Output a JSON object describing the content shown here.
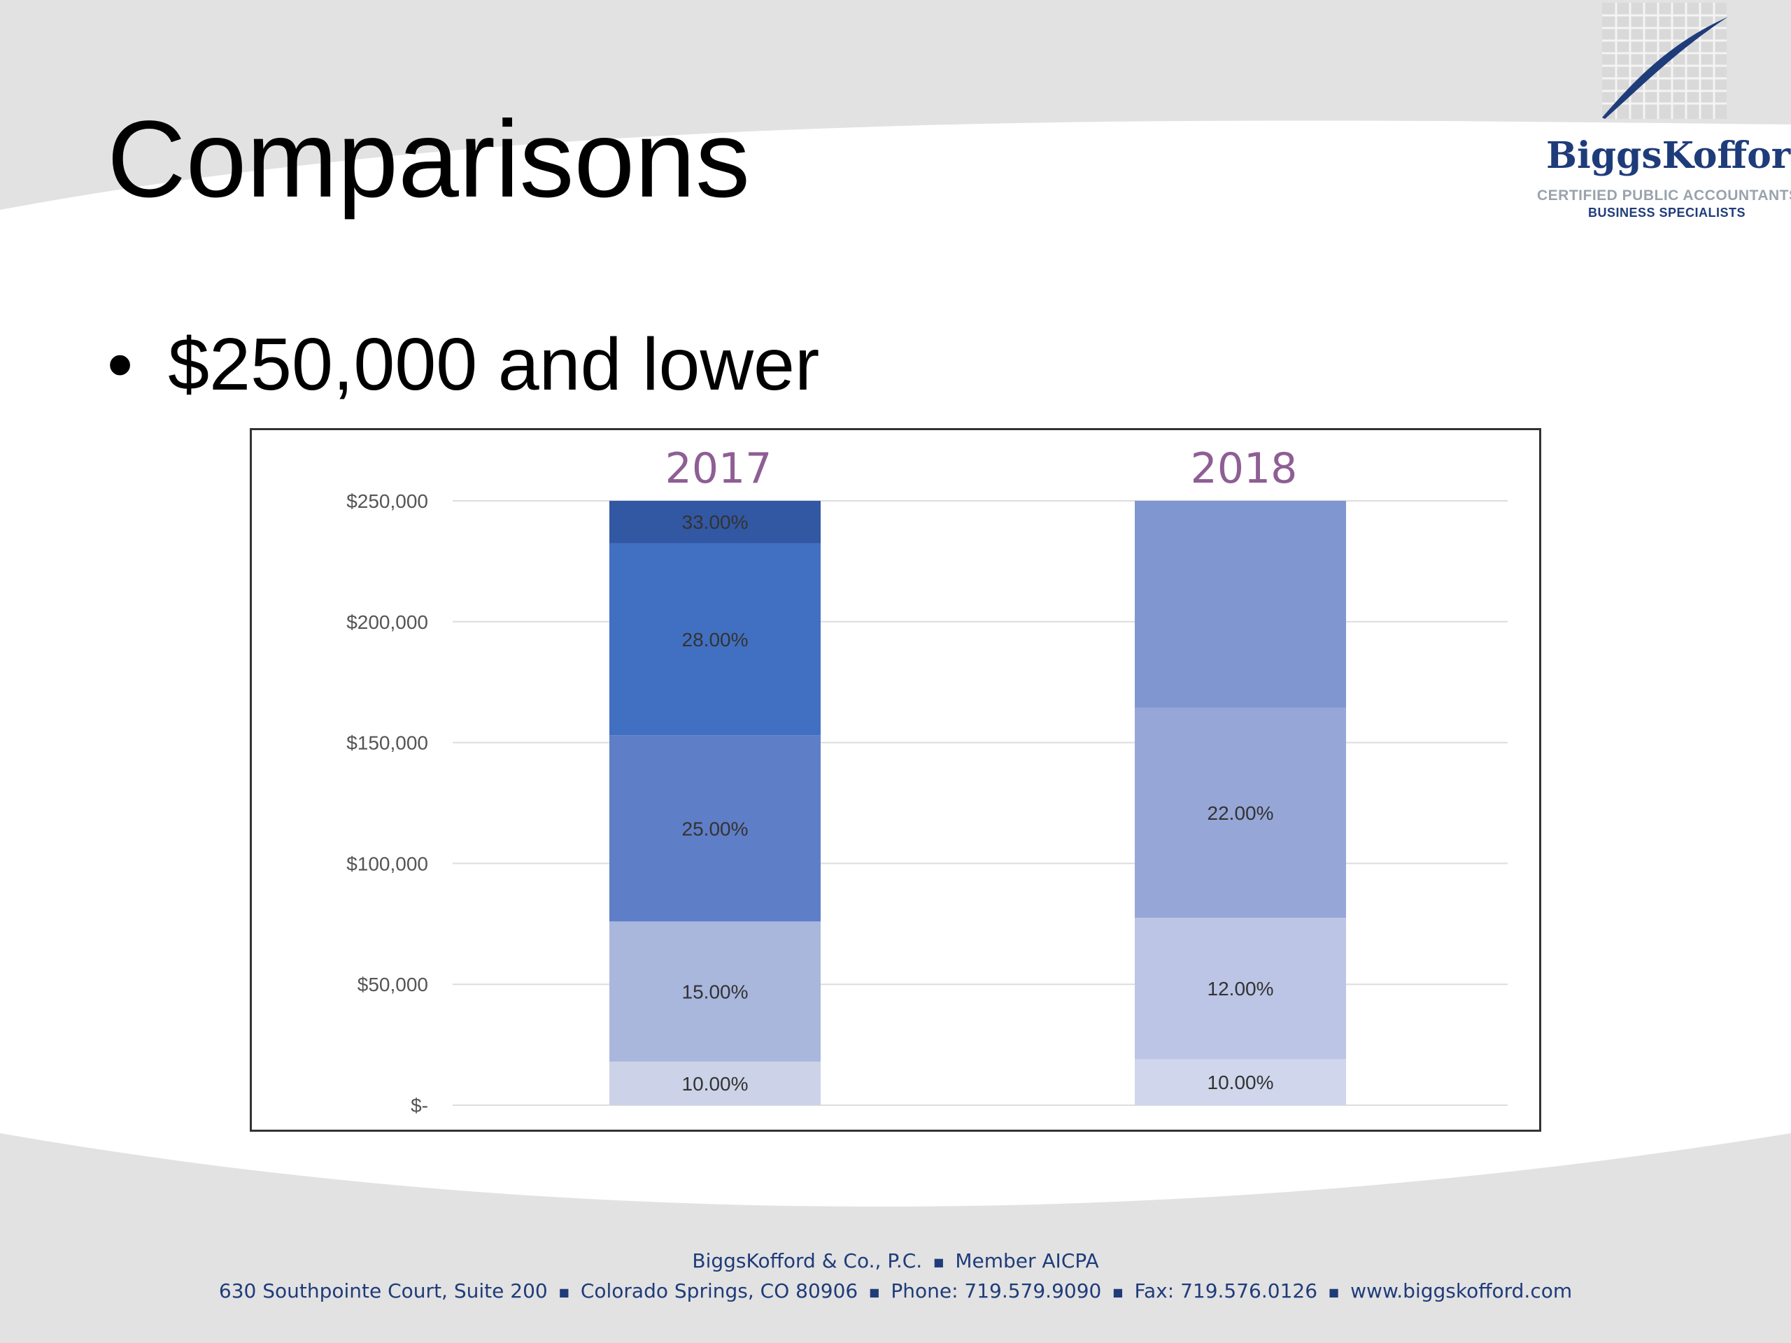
{
  "slide": {
    "title": "Comparisons",
    "bullet_marker": "•",
    "bullet_text": "$250,000 and lower"
  },
  "logo": {
    "name": "BiggsKofford",
    "line1": "CERTIFIED PUBLIC ACCOUNTANTS",
    "line2": "BUSINESS SPECIALISTS",
    "icon": "grid-with-swoosh-logo"
  },
  "footer": {
    "line1_parts": [
      "BiggsKofford & Co., P.C.",
      "Member AICPA"
    ],
    "line2_parts": [
      "630 Southpointe Court, Suite 200",
      "Colorado Springs, CO 80906",
      "Phone: 719.579.9090",
      "Fax: 719.576.0126",
      "www.biggskofford.com"
    ],
    "separator": "■"
  },
  "colors": {
    "title_color": "#000000",
    "footer_color": "#1f3c7a",
    "year_label_color": "#8e5e95",
    "background_band": "#e2e2e2"
  },
  "chart_data": {
    "type": "bar",
    "stacked": true,
    "categories": [
      "2017",
      "2018"
    ],
    "y_tick_labels": [
      "$-",
      "$50,000",
      "$100,000",
      "$150,000",
      "$200,000",
      "$250,000"
    ],
    "y_ticks": [
      0,
      50000,
      100000,
      150000,
      200000,
      250000
    ],
    "ylim": [
      0,
      250000
    ],
    "grid": true,
    "legend": "none",
    "stacks": [
      {
        "category": "2017",
        "segments": [
          {
            "from": 0,
            "to": 18000,
            "label": "10.00%",
            "color": "#ccd3e8"
          },
          {
            "from": 18000,
            "to": 76000,
            "label": "15.00%",
            "color": "#a9b7dd"
          },
          {
            "from": 76000,
            "to": 153000,
            "label": "25.00%",
            "color": "#5f7ec8"
          },
          {
            "from": 153000,
            "to": 232500,
            "label": "28.00%",
            "color": "#4170c2"
          },
          {
            "from": 232500,
            "to": 250000,
            "label": "33.00%",
            "color": "#3257a3"
          }
        ]
      },
      {
        "category": "2018",
        "segments": [
          {
            "from": 0,
            "to": 19000,
            "label": "10.00%",
            "color": "#d0d6eb"
          },
          {
            "from": 19000,
            "to": 77500,
            "label": "12.00%",
            "color": "#bcc5e6"
          },
          {
            "from": 77500,
            "to": 164500,
            "label": "22.00%",
            "color": "#96a7d7"
          },
          {
            "from": 164500,
            "to": 250000,
            "label": "",
            "color": "#7f96d0"
          }
        ]
      }
    ]
  }
}
